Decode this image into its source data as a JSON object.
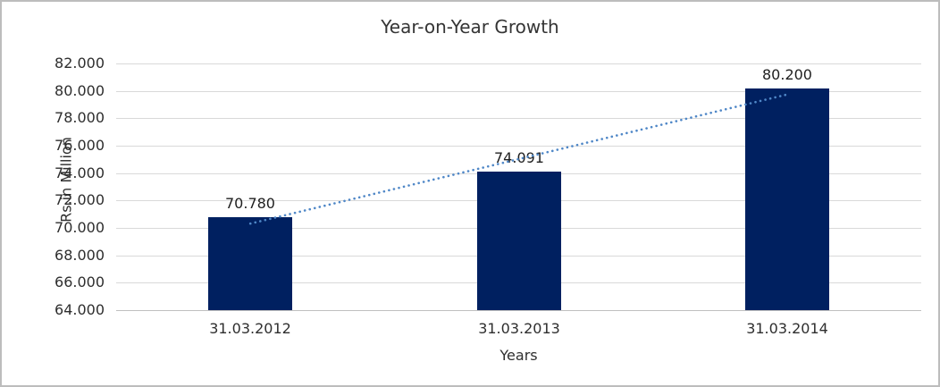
{
  "chart_data": {
    "type": "bar",
    "title": "Year-on-Year Growth",
    "xlabel": "Years",
    "ylabel": "Rs.in Million",
    "categories": [
      "31.03.2012",
      "31.03.2013",
      "31.03.2014"
    ],
    "values": [
      70780,
      74091,
      80200
    ],
    "data_labels": [
      "70.780",
      "74.091",
      "80.200"
    ],
    "ylim": [
      64000,
      82000
    ],
    "ytick_step": 2000,
    "ytick_labels": [
      "64.000",
      "66.000",
      "68.000",
      "70.000",
      "72.000",
      "74.000",
      "76.000",
      "78.000",
      "80.000",
      "82.000"
    ],
    "grid": true,
    "legend": "none",
    "trendline": {
      "type": "linear",
      "style": "dotted",
      "spans": "first-to-last-category",
      "endpoint_values": [
        70313.7,
        79733.7
      ]
    },
    "colors": {
      "bar": "#002060",
      "trendline": "#4f87c7",
      "gridline": "#d9d9d9",
      "axis_line": "#bfbfbf",
      "text": "#2e2e2e",
      "background": "#ffffff",
      "border": "#bdbdbd"
    }
  }
}
